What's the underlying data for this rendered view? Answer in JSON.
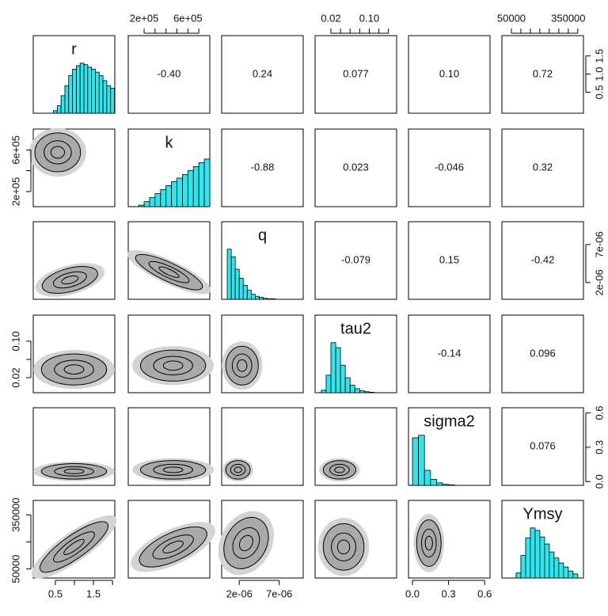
{
  "chart_data": {
    "type": "pairs",
    "hist_color": "#2ee6ee",
    "hist_ylim": [
      0,
      1.55
    ],
    "variables": [
      {
        "name": "r",
        "lim": [
          -0.08,
          2.06
        ],
        "xticks": [
          0.5,
          1.5
        ],
        "xminor": [
          1,
          2
        ],
        "yticks": [
          0.5,
          {
            "value": 1,
            "label": "1.0"
          },
          1.5
        ],
        "hist": {
          "bins": [
            0.45,
            0.55,
            0.65,
            0.75,
            0.85,
            0.95,
            1.05,
            1.15,
            1.25,
            1.35,
            1.45,
            1.55,
            1.65,
            1.75,
            1.85,
            1.95,
            2.05
          ],
          "values": [
            0.05,
            0.15,
            0.35,
            0.55,
            0.75,
            0.88,
            0.95,
            1.0,
            0.97,
            0.92,
            0.88,
            0.82,
            0.75,
            0.65,
            0.55,
            0.5
          ]
        }
      },
      {
        "name": "k",
        "lim": [
          55000,
          800000
        ],
        "xticks": [
          {
            "value": 200000,
            "label": "2e+05"
          },
          {
            "value": 600000,
            "label": "6e+05"
          }
        ],
        "xminor": [
          300000,
          400000,
          500000,
          700000
        ],
        "yticks": [
          {
            "value": 200000,
            "label": "2e+05"
          },
          {
            "value": 600000,
            "label": "6e+05"
          }
        ],
        "yminor": [
          400000
        ],
        "hist": {
          "bins": [
            150000,
            200000,
            250000,
            300000,
            350000,
            400000,
            450000,
            500000,
            550000,
            600000,
            650000,
            700000,
            750000,
            800000
          ],
          "values": [
            0.03,
            0.1,
            0.18,
            0.26,
            0.34,
            0.42,
            0.5,
            0.57,
            0.64,
            0.72,
            0.8,
            0.88,
            0.95
          ]
        }
      },
      {
        "name": "q",
        "lim": [
          -2e-07,
          1e-05
        ],
        "xticks": [
          {
            "value": 2e-06,
            "label": "2e-06"
          },
          {
            "value": 7e-06,
            "label": "7e-06"
          }
        ],
        "yticks": [
          {
            "value": 2e-06,
            "label": "2e-06"
          },
          {
            "value": 7e-06,
            "label": "7e-06"
          }
        ],
        "hist": {
          "bins": [
            5e-07,
            1e-06,
            1.5e-06,
            2e-06,
            2.5e-06,
            3e-06,
            3.5e-06,
            4e-06,
            4.5e-06,
            5e-06,
            5.5e-06,
            6e-06,
            6.5e-06
          ],
          "values": [
            1.0,
            0.85,
            0.6,
            0.42,
            0.28,
            0.18,
            0.1,
            0.06,
            0.04,
            0.02,
            0.01,
            0.01
          ]
        }
      },
      {
        "name": "tau2",
        "lim": [
          -0.013,
          0.157
        ],
        "xticks": [
          0.02,
          {
            "value": 0.1,
            "label": "0.10"
          }
        ],
        "xminor": [
          0.04,
          0.06,
          0.08,
          0.12,
          0.14
        ],
        "yticks": [
          0.02,
          {
            "value": 0.1,
            "label": "0.10"
          }
        ],
        "yminor": [
          0.06
        ],
        "hist": {
          "bins": [
            0,
            0.01,
            0.02,
            0.03,
            0.04,
            0.05,
            0.06,
            0.07,
            0.08,
            0.09,
            0.1,
            0.11
          ],
          "values": [
            0.05,
            0.35,
            1.0,
            0.9,
            0.55,
            0.3,
            0.15,
            0.08,
            0.04,
            0.02,
            0.01
          ]
        }
      },
      {
        "name": "sigma2",
        "lim": [
          -0.033,
          0.645
        ],
        "xticks": [
          {
            "value": 0,
            "label": "0.0"
          },
          0.3,
          0.6
        ],
        "yticks": [
          {
            "value": 0,
            "label": "0.0"
          },
          0.3,
          0.6
        ],
        "hist": {
          "bins": [
            0,
            0.05,
            0.1,
            0.15,
            0.2,
            0.25,
            0.3,
            0.35
          ],
          "values": [
            0.95,
            1.0,
            0.3,
            0.12,
            0.05,
            0.02,
            0.01
          ]
        }
      },
      {
        "name": "Ymsy",
        "lim": [
          0,
          430000
        ],
        "xticks": [
          50000,
          350000
        ],
        "xminor": [
          100000,
          150000,
          200000,
          250000,
          300000,
          400000
        ],
        "yticks": [
          50000,
          350000
        ],
        "yminor": [
          200000
        ],
        "hist": {
          "bins": [
            75000,
            100000,
            125000,
            150000,
            175000,
            200000,
            225000,
            250000,
            275000,
            300000,
            325000,
            350000,
            375000,
            400000
          ],
          "values": [
            0.1,
            0.45,
            0.8,
            1.0,
            0.95,
            0.82,
            0.68,
            0.52,
            0.4,
            0.3,
            0.22,
            0.14,
            0.08
          ]
        }
      }
    ],
    "correlations": [
      [
        "-0.40",
        "0.24",
        "0.077",
        "0.10",
        "0.72"
      ],
      [
        "-0.88",
        "0.023",
        "-0.046",
        "0.32"
      ],
      [
        "-0.079",
        "0.15",
        "-0.42"
      ],
      [
        "-0.14",
        "0.096"
      ],
      [
        "0.076"
      ]
    ]
  }
}
